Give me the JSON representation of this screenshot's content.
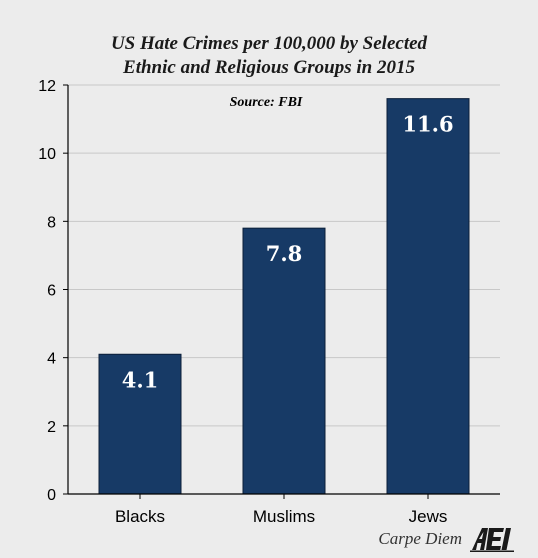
{
  "chart_data": {
    "type": "bar",
    "title_lines": [
      "US Hate Crimes per 100,000 by Selected",
      "Ethnic and Religious Groups in 2015"
    ],
    "annotation": "Source: FBI",
    "categories": [
      "Blacks",
      "Muslims",
      "Jews"
    ],
    "values": [
      4.1,
      7.8,
      11.6
    ],
    "value_labels": [
      "4.1",
      "7.8",
      "11.6"
    ],
    "ylim": [
      0,
      12
    ],
    "yticks": [
      0,
      2,
      4,
      6,
      8,
      10,
      12
    ],
    "grid": true,
    "bar_color": "#173a66",
    "grid_color": "#c8c8c8"
  },
  "footer": {
    "credit": "Carpe Diem",
    "logo_icon": "aei-logo-icon",
    "logo_text": "AEI"
  }
}
